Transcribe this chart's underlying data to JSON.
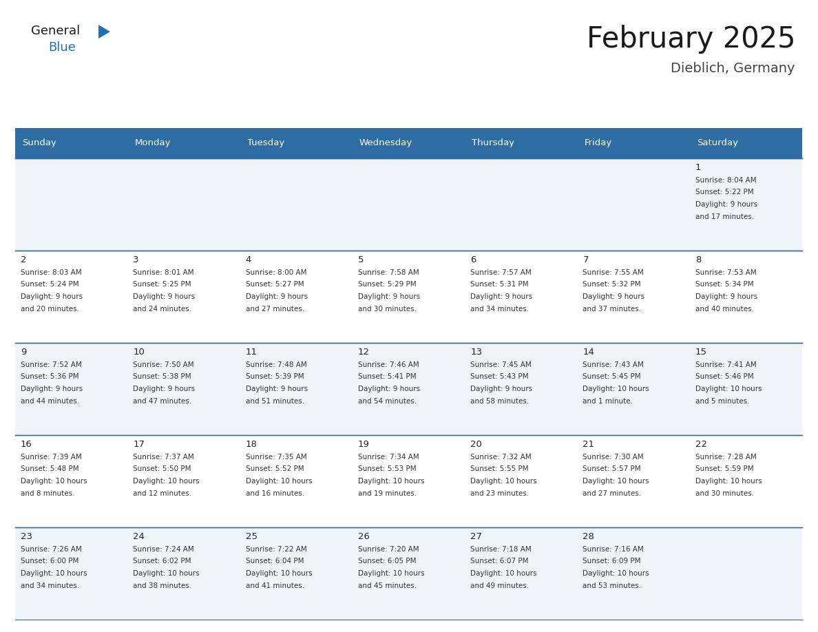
{
  "title": "February 2025",
  "subtitle": "Dieblich, Germany",
  "days_of_week": [
    "Sunday",
    "Monday",
    "Tuesday",
    "Wednesday",
    "Thursday",
    "Friday",
    "Saturday"
  ],
  "header_bg": "#2E6DA4",
  "header_text": "#FFFFFF",
  "cell_bg_odd": "#F0F4F8",
  "cell_bg_even": "#FFFFFF",
  "cell_border_color": "#2E6DA4",
  "day_number_color": "#222222",
  "info_text_color": "#333333",
  "title_color": "#1a1a1a",
  "subtitle_color": "#444444",
  "logo_general_color": "#1a1a1a",
  "logo_blue_color": "#1a72b8",
  "weeks": [
    [
      null,
      null,
      null,
      null,
      null,
      null,
      1
    ],
    [
      2,
      3,
      4,
      5,
      6,
      7,
      8
    ],
    [
      9,
      10,
      11,
      12,
      13,
      14,
      15
    ],
    [
      16,
      17,
      18,
      19,
      20,
      21,
      22
    ],
    [
      23,
      24,
      25,
      26,
      27,
      28,
      null
    ]
  ],
  "cell_data": {
    "1": {
      "sunrise": "8:04 AM",
      "sunset": "5:22 PM",
      "daylight_line1": "Daylight: 9 hours",
      "daylight_line2": "and 17 minutes."
    },
    "2": {
      "sunrise": "8:03 AM",
      "sunset": "5:24 PM",
      "daylight_line1": "Daylight: 9 hours",
      "daylight_line2": "and 20 minutes."
    },
    "3": {
      "sunrise": "8:01 AM",
      "sunset": "5:25 PM",
      "daylight_line1": "Daylight: 9 hours",
      "daylight_line2": "and 24 minutes."
    },
    "4": {
      "sunrise": "8:00 AM",
      "sunset": "5:27 PM",
      "daylight_line1": "Daylight: 9 hours",
      "daylight_line2": "and 27 minutes."
    },
    "5": {
      "sunrise": "7:58 AM",
      "sunset": "5:29 PM",
      "daylight_line1": "Daylight: 9 hours",
      "daylight_line2": "and 30 minutes."
    },
    "6": {
      "sunrise": "7:57 AM",
      "sunset": "5:31 PM",
      "daylight_line1": "Daylight: 9 hours",
      "daylight_line2": "and 34 minutes."
    },
    "7": {
      "sunrise": "7:55 AM",
      "sunset": "5:32 PM",
      "daylight_line1": "Daylight: 9 hours",
      "daylight_line2": "and 37 minutes."
    },
    "8": {
      "sunrise": "7:53 AM",
      "sunset": "5:34 PM",
      "daylight_line1": "Daylight: 9 hours",
      "daylight_line2": "and 40 minutes."
    },
    "9": {
      "sunrise": "7:52 AM",
      "sunset": "5:36 PM",
      "daylight_line1": "Daylight: 9 hours",
      "daylight_line2": "and 44 minutes."
    },
    "10": {
      "sunrise": "7:50 AM",
      "sunset": "5:38 PM",
      "daylight_line1": "Daylight: 9 hours",
      "daylight_line2": "and 47 minutes."
    },
    "11": {
      "sunrise": "7:48 AM",
      "sunset": "5:39 PM",
      "daylight_line1": "Daylight: 9 hours",
      "daylight_line2": "and 51 minutes."
    },
    "12": {
      "sunrise": "7:46 AM",
      "sunset": "5:41 PM",
      "daylight_line1": "Daylight: 9 hours",
      "daylight_line2": "and 54 minutes."
    },
    "13": {
      "sunrise": "7:45 AM",
      "sunset": "5:43 PM",
      "daylight_line1": "Daylight: 9 hours",
      "daylight_line2": "and 58 minutes."
    },
    "14": {
      "sunrise": "7:43 AM",
      "sunset": "5:45 PM",
      "daylight_line1": "Daylight: 10 hours",
      "daylight_line2": "and 1 minute."
    },
    "15": {
      "sunrise": "7:41 AM",
      "sunset": "5:46 PM",
      "daylight_line1": "Daylight: 10 hours",
      "daylight_line2": "and 5 minutes."
    },
    "16": {
      "sunrise": "7:39 AM",
      "sunset": "5:48 PM",
      "daylight_line1": "Daylight: 10 hours",
      "daylight_line2": "and 8 minutes."
    },
    "17": {
      "sunrise": "7:37 AM",
      "sunset": "5:50 PM",
      "daylight_line1": "Daylight: 10 hours",
      "daylight_line2": "and 12 minutes."
    },
    "18": {
      "sunrise": "7:35 AM",
      "sunset": "5:52 PM",
      "daylight_line1": "Daylight: 10 hours",
      "daylight_line2": "and 16 minutes."
    },
    "19": {
      "sunrise": "7:34 AM",
      "sunset": "5:53 PM",
      "daylight_line1": "Daylight: 10 hours",
      "daylight_line2": "and 19 minutes."
    },
    "20": {
      "sunrise": "7:32 AM",
      "sunset": "5:55 PM",
      "daylight_line1": "Daylight: 10 hours",
      "daylight_line2": "and 23 minutes."
    },
    "21": {
      "sunrise": "7:30 AM",
      "sunset": "5:57 PM",
      "daylight_line1": "Daylight: 10 hours",
      "daylight_line2": "and 27 minutes."
    },
    "22": {
      "sunrise": "7:28 AM",
      "sunset": "5:59 PM",
      "daylight_line1": "Daylight: 10 hours",
      "daylight_line2": "and 30 minutes."
    },
    "23": {
      "sunrise": "7:26 AM",
      "sunset": "6:00 PM",
      "daylight_line1": "Daylight: 10 hours",
      "daylight_line2": "and 34 minutes."
    },
    "24": {
      "sunrise": "7:24 AM",
      "sunset": "6:02 PM",
      "daylight_line1": "Daylight: 10 hours",
      "daylight_line2": "and 38 minutes."
    },
    "25": {
      "sunrise": "7:22 AM",
      "sunset": "6:04 PM",
      "daylight_line1": "Daylight: 10 hours",
      "daylight_line2": "and 41 minutes."
    },
    "26": {
      "sunrise": "7:20 AM",
      "sunset": "6:05 PM",
      "daylight_line1": "Daylight: 10 hours",
      "daylight_line2": "and 45 minutes."
    },
    "27": {
      "sunrise": "7:18 AM",
      "sunset": "6:07 PM",
      "daylight_line1": "Daylight: 10 hours",
      "daylight_line2": "and 49 minutes."
    },
    "28": {
      "sunrise": "7:16 AM",
      "sunset": "6:09 PM",
      "daylight_line1": "Daylight: 10 hours",
      "daylight_line2": "and 53 minutes."
    }
  }
}
